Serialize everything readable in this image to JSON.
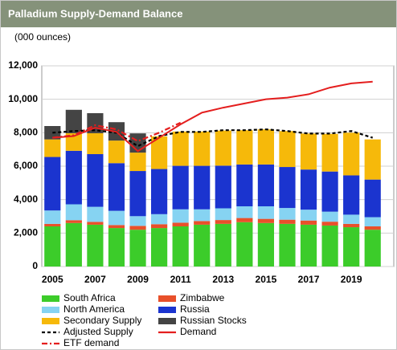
{
  "chart_data": {
    "type": "bar",
    "stacked": true,
    "title": "Palladium Supply-Demand Balance",
    "y_axis_label": "(000 ounces)",
    "categories": [
      "2005",
      null,
      "2007",
      null,
      "2009",
      null,
      "2011",
      null,
      "2013",
      null,
      "2015",
      null,
      "2017",
      null,
      "2019",
      null
    ],
    "ylim": [
      0,
      12000
    ],
    "yticks": [
      0,
      {
        "value": 2000,
        "label": "2,000"
      },
      {
        "value": 4000,
        "label": "4,000"
      },
      {
        "value": 6000,
        "label": "6,000"
      },
      {
        "value": 8000,
        "label": "8,000"
      },
      {
        "value": 10000,
        "label": "10,000"
      },
      {
        "value": 12000,
        "label": "12,000"
      }
    ],
    "grid": true,
    "series": [
      {
        "name": "South Africa",
        "color": "#3ccc2a",
        "values": [
          2400,
          2600,
          2500,
          2300,
          2200,
          2300,
          2400,
          2500,
          2550,
          2650,
          2600,
          2550,
          2500,
          2450,
          2350,
          2200
        ]
      },
      {
        "name": "Zimbabwe",
        "color": "#e8502a",
        "values": [
          150,
          170,
          170,
          180,
          230,
          230,
          220,
          220,
          230,
          250,
          250,
          250,
          250,
          230,
          200,
          200
        ]
      },
      {
        "name": "North America",
        "color": "#86d3f2",
        "values": [
          800,
          950,
          900,
          850,
          580,
          600,
          800,
          700,
          700,
          700,
          750,
          700,
          650,
          600,
          550,
          550
        ]
      },
      {
        "name": "Russia",
        "color": "#1b34cf",
        "values": [
          3200,
          3200,
          3150,
          2850,
          2700,
          2700,
          2600,
          2600,
          2550,
          2500,
          2500,
          2450,
          2400,
          2400,
          2350,
          2250
        ]
      },
      {
        "name": "Secondary Supply",
        "color": "#f6b90a",
        "values": [
          1050,
          1050,
          1250,
          1350,
          1100,
          1950,
          2050,
          2050,
          2100,
          2050,
          2100,
          2150,
          2150,
          2250,
          2550,
          2400
        ]
      },
      {
        "name": "Russian Stocks",
        "color": "#444444",
        "values": [
          800,
          1400,
          1200,
          1100,
          1150,
          0,
          0,
          0,
          0,
          0,
          0,
          0,
          0,
          0,
          0,
          0
        ]
      }
    ],
    "lines": [
      {
        "name": "Adjusted Supply",
        "color": "#000000",
        "line_style": "dashed",
        "values": [
          8000,
          8100,
          8150,
          8000,
          7200,
          7800,
          8050,
          8050,
          8150,
          8150,
          8200,
          8100,
          7950,
          7950,
          8100,
          7700
        ]
      },
      {
        "name": "Demand",
        "color": "#e41e1e",
        "line_style": "solid",
        "values": [
          7700,
          7800,
          8300,
          8050,
          6900,
          7700,
          8500,
          9200,
          9500,
          9750,
          10000,
          10100,
          10300,
          10700,
          10950,
          11050
        ]
      },
      {
        "name": "ETF demand",
        "color": "#e41e1e",
        "line_style": "dash-dot",
        "values": [
          7700,
          7850,
          8450,
          8200,
          7500,
          8000,
          8600,
          null,
          null,
          null,
          null,
          null,
          null,
          null,
          null,
          null
        ]
      }
    ]
  }
}
